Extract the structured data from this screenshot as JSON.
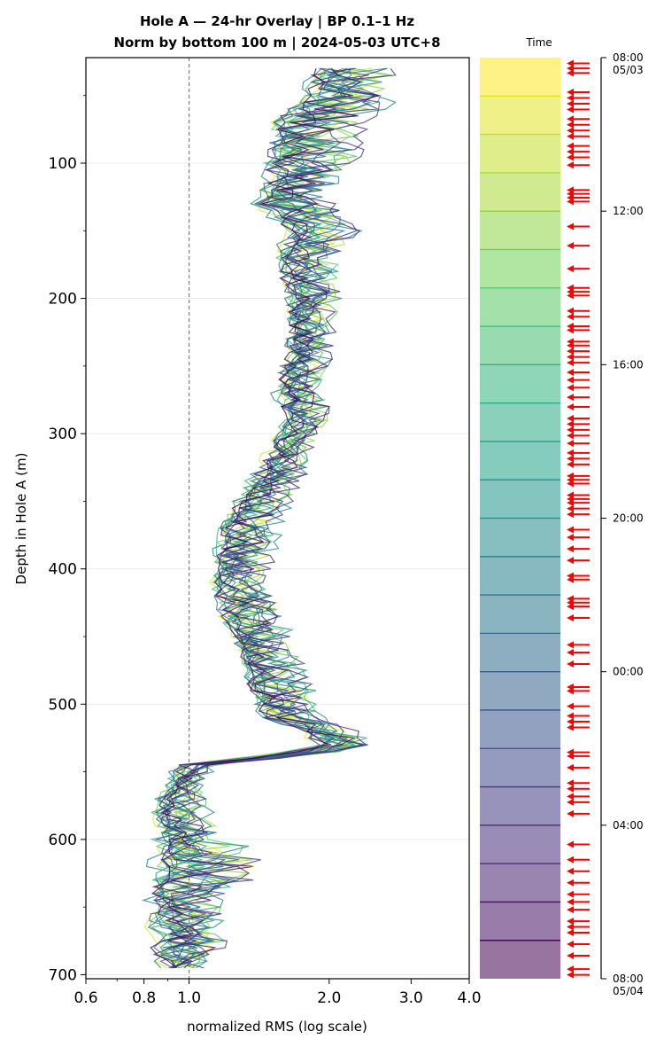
{
  "chart_data": {
    "type": "line",
    "title_lines": [
      "Hole A — 24-hr Overlay  |  BP 0.1–1 Hz",
      "Norm by bottom 100 m  |  2024-05-03 UTC+8"
    ],
    "xlabel": "normalized RMS  (log scale)",
    "ylabel": "Depth in Hole A (m)",
    "x_scale": "log",
    "xlim": [
      0.6,
      4.0
    ],
    "ylim": [
      703,
      22
    ],
    "x_ticks": [
      {
        "value": 0.6,
        "label": "0.6"
      },
      {
        "value": 0.8,
        "label": "0.8"
      },
      {
        "value": 1.0,
        "label": "1.0"
      },
      {
        "value": 2.0,
        "label": "2.0"
      },
      {
        "value": 3.0,
        "label": "3.0"
      },
      {
        "value": 4.0,
        "label": "4.0"
      }
    ],
    "y_ticks": [
      {
        "value": 100,
        "label": "100"
      },
      {
        "value": 200,
        "label": "200"
      },
      {
        "value": 300,
        "label": "300"
      },
      {
        "value": 400,
        "label": "400"
      },
      {
        "value": 500,
        "label": "500"
      },
      {
        "value": 600,
        "label": "600"
      },
      {
        "value": 700,
        "label": "700"
      }
    ],
    "reference_line": {
      "x": 1.0,
      "style": "dashed"
    },
    "grid": "horizontal",
    "series_count": 24,
    "colormap": "viridis",
    "depth_profile": {
      "depth": [
        30,
        50,
        70,
        90,
        110,
        130,
        150,
        170,
        190,
        210,
        230,
        250,
        270,
        290,
        310,
        330,
        350,
        370,
        390,
        410,
        430,
        450,
        470,
        490,
        510,
        530,
        545,
        560,
        580,
        600,
        620,
        640,
        660,
        680,
        695
      ],
      "median_rms": [
        2.0,
        1.95,
        1.65,
        1.6,
        1.6,
        1.5,
        1.8,
        1.65,
        1.7,
        1.75,
        1.72,
        1.68,
        1.65,
        1.7,
        1.6,
        1.5,
        1.35,
        1.25,
        1.22,
        1.2,
        1.25,
        1.3,
        1.38,
        1.42,
        1.55,
        2.2,
        1.0,
        0.95,
        0.9,
        0.92,
        0.95,
        0.93,
        0.92,
        0.93,
        0.95
      ],
      "envelope_max": [
        3.2,
        3.3,
        2.9,
        2.8,
        2.5,
        2.4,
        2.6,
        2.4,
        2.35,
        2.3,
        2.25,
        2.2,
        2.15,
        2.2,
        2.0,
        1.95,
        1.85,
        1.75,
        1.7,
        1.65,
        1.8,
        1.85,
        1.95,
        2.1,
        2.3,
        2.9,
        1.25,
        1.15,
        1.25,
        1.45,
        1.85,
        1.35,
        1.3,
        1.4,
        1.15
      ],
      "envelope_min": [
        1.7,
        1.5,
        1.35,
        1.3,
        1.3,
        1.25,
        1.45,
        1.4,
        1.45,
        1.5,
        1.5,
        1.45,
        1.4,
        1.45,
        1.35,
        1.2,
        1.1,
        1.05,
        1.05,
        1.03,
        1.05,
        1.15,
        1.2,
        1.25,
        1.3,
        1.6,
        0.88,
        0.8,
        0.77,
        0.75,
        0.72,
        0.72,
        0.7,
        0.68,
        0.8
      ]
    },
    "colorbar": {
      "title": "Time",
      "tick_labels": [
        {
          "hours": 0,
          "label": "08:00",
          "sublabel": "05/03"
        },
        {
          "hours": 4,
          "label": "12:00",
          "sublabel": ""
        },
        {
          "hours": 8,
          "label": "16:00",
          "sublabel": ""
        },
        {
          "hours": 12,
          "label": "20:00",
          "sublabel": ""
        },
        {
          "hours": 16,
          "label": "00:00",
          "sublabel": ""
        },
        {
          "hours": 20,
          "label": "04:00",
          "sublabel": ""
        },
        {
          "hours": 24,
          "label": "08:00",
          "sublabel": "05/04"
        }
      ],
      "bands": 24,
      "event_marker_color": "#ff0000",
      "event_hours": [
        0.15,
        0.28,
        0.4,
        0.9,
        1.05,
        1.2,
        1.35,
        1.6,
        1.75,
        1.9,
        2.05,
        2.3,
        2.45,
        2.6,
        2.8,
        3.45,
        3.55,
        3.65,
        3.75,
        4.4,
        4.9,
        5.5,
        6.0,
        6.1,
        6.2,
        6.6,
        6.75,
        7.0,
        7.1,
        7.4,
        7.5,
        7.65,
        7.8,
        7.95,
        8.2,
        8.4,
        8.6,
        8.85,
        9.1,
        9.4,
        9.55,
        9.7,
        9.85,
        10.05,
        10.3,
        10.45,
        10.6,
        10.9,
        11.0,
        11.1,
        11.4,
        11.5,
        11.6,
        11.75,
        11.9,
        12.3,
        12.5,
        12.8,
        13.1,
        13.5,
        13.6,
        14.1,
        14.2,
        14.3,
        14.6,
        15.3,
        15.5,
        15.8,
        16.4,
        16.5,
        16.9,
        17.15,
        17.3,
        17.45,
        18.1,
        18.2,
        18.5,
        18.9,
        19.05,
        19.25,
        19.4,
        19.7,
        20.5,
        20.9,
        21.2,
        21.5,
        21.8,
        22.0,
        22.2,
        22.5,
        22.65,
        22.8,
        23.1,
        23.4,
        23.75,
        23.9
      ]
    }
  }
}
